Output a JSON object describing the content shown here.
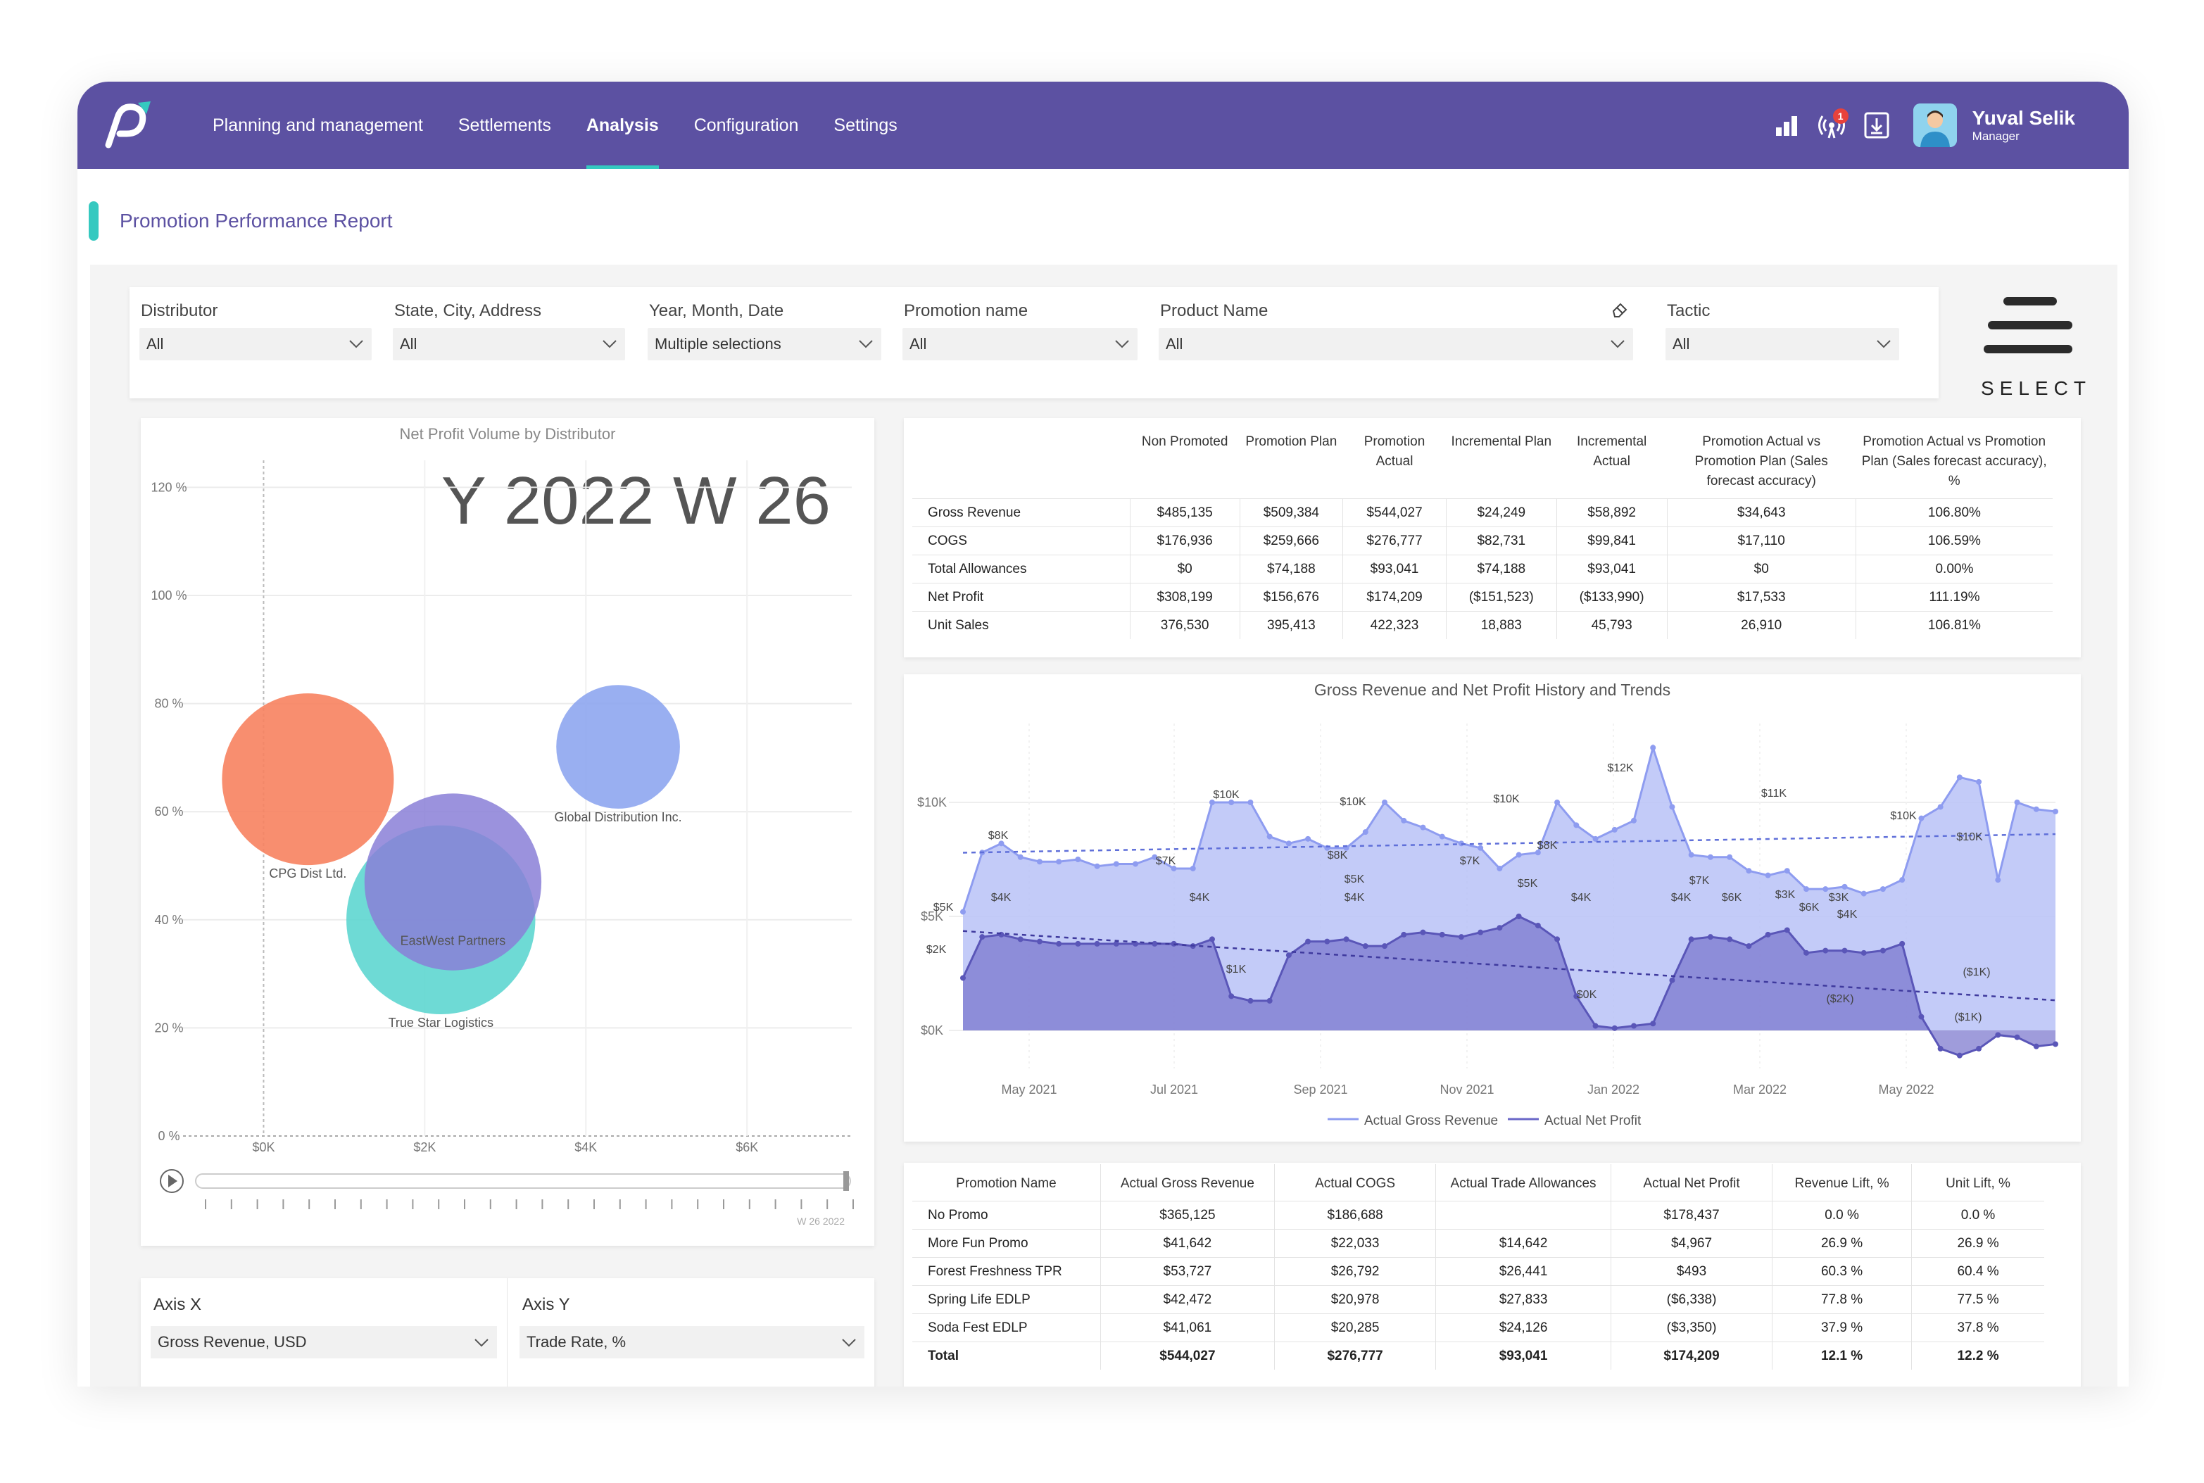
{
  "nav": {
    "items": [
      "Planning and management",
      "Settlements",
      "Analysis",
      "Configuration",
      "Settings"
    ],
    "active": "Analysis",
    "notification_count": "1"
  },
  "user": {
    "name": "Yuval Selik",
    "role": "Manager"
  },
  "report_title": "Promotion Performance Report",
  "filters": [
    {
      "label": "Distributor",
      "value": "All"
    },
    {
      "label": "State, City, Address",
      "value": "All"
    },
    {
      "label": "Year, Month, Date",
      "value": "Multiple selections"
    },
    {
      "label": "Promotion name",
      "value": "All"
    },
    {
      "label": "Product Name",
      "value": "All"
    },
    {
      "label": "Tactic",
      "value": "All"
    }
  ],
  "select_label": "SELECT",
  "bubble": {
    "title": "Net Profit Volume by Distributor",
    "period": "Y 2022 W 26",
    "y_ticks": [
      "0 %",
      "20 %",
      "40 %",
      "60 %",
      "80 %",
      "100 %",
      "120 %"
    ],
    "x_ticks": [
      "$0K",
      "$2K",
      "$4K",
      "$6K"
    ],
    "timeline_label": "W 26 2022",
    "points": [
      {
        "name": "CPG Dist Ltd.",
        "x": 0.55,
        "y": 66,
        "color": "#f7825f"
      },
      {
        "name": "Global Distribution Inc.",
        "x": 4.4,
        "y": 72,
        "color": "#8ea6ef"
      },
      {
        "name": "EastWest Partners",
        "x": 2.35,
        "y": 47,
        "color": "#8a7fd7"
      },
      {
        "name": "True Star Logistics",
        "x": 2.2,
        "y": 40,
        "color": "#5ed6d0"
      }
    ]
  },
  "axis_selectors": [
    {
      "label": "Axis X",
      "value": "Gross Revenue, USD"
    },
    {
      "label": "Axis Y",
      "value": "Trade Rate, %"
    }
  ],
  "table1": {
    "headers": [
      "",
      "Non Promoted",
      "Promotion Plan",
      "Promotion Actual",
      "Incremental Plan",
      "Incremental Actual",
      "Promotion Actual vs Promotion Plan (Sales forecast accuracy)",
      "Promotion Actual vs Promotion Plan (Sales forecast accuracy), %"
    ],
    "rows": [
      [
        "Gross Revenue",
        "$485,135",
        "$509,384",
        "$544,027",
        "$24,249",
        "$58,892",
        "$34,643",
        "106.80%"
      ],
      [
        "COGS",
        "$176,936",
        "$259,666",
        "$276,777",
        "$82,731",
        "$99,841",
        "$17,110",
        "106.59%"
      ],
      [
        "Total Allowances",
        "$0",
        "$74,188",
        "$93,041",
        "$74,188",
        "$93,041",
        "$0",
        "0.00%"
      ],
      [
        "Net Profit",
        "$308,199",
        "$156,676",
        "$174,209",
        "($151,523)",
        "($133,990)",
        "$17,533",
        "111.19%"
      ],
      [
        "Unit Sales",
        "376,530",
        "395,413",
        "422,323",
        "18,883",
        "45,793",
        "26,910",
        "106.81%"
      ]
    ]
  },
  "table2": {
    "headers": [
      "Promotion Name",
      "Actual Gross Revenue",
      "Actual COGS",
      "Actual Trade Allowances",
      "Actual Net Profit",
      "Revenue Lift, %",
      "Unit Lift, %"
    ],
    "rows": [
      [
        "No Promo",
        "$365,125",
        "$186,688",
        "",
        "$178,437",
        "0.0 %",
        "0.0 %"
      ],
      [
        "More Fun Promo",
        "$41,642",
        "$22,033",
        "$14,642",
        "$4,967",
        "26.9 %",
        "26.9 %"
      ],
      [
        "Forest Freshness TPR",
        "$53,727",
        "$26,792",
        "$26,441",
        "$493",
        "60.3 %",
        "60.4 %"
      ],
      [
        "Spring Life EDLP",
        "$42,472",
        "$20,978",
        "$27,833",
        "($6,338)",
        "77.8 %",
        "77.5 %"
      ],
      [
        "Soda Fest EDLP",
        "$41,061",
        "$20,285",
        "$24,126",
        "($3,350)",
        "37.9 %",
        "37.8 %"
      ]
    ],
    "total": [
      "Total",
      "$544,027",
      "$276,777",
      "$93,041",
      "$174,209",
      "12.1 %",
      "12.2 %"
    ]
  },
  "chart_data": [
    {
      "type": "scatter",
      "title": "Net Profit Volume by Distributor",
      "xlabel": "",
      "ylabel": "",
      "x_ticks": [
        "$0K",
        "$2K",
        "$4K",
        "$6K"
      ],
      "y_ticks": [
        "0 %",
        "20 %",
        "40 %",
        "60 %",
        "80 %",
        "100 %",
        "120 %"
      ],
      "xlim": [
        -1,
        7.3
      ],
      "ylim": [
        0,
        125
      ],
      "series": [
        {
          "name": "CPG Dist Ltd.",
          "x": [
            0.55
          ],
          "y": [
            66
          ],
          "size": 1.0
        },
        {
          "name": "Global Distribution Inc.",
          "x": [
            4.4
          ],
          "y": [
            72
          ],
          "size": 0.72
        },
        {
          "name": "EastWest Partners",
          "x": [
            2.35
          ],
          "y": [
            47
          ],
          "size": 1.03
        },
        {
          "name": "True Star Logistics",
          "x": [
            2.2
          ],
          "y": [
            40
          ],
          "size": 1.1
        }
      ]
    },
    {
      "type": "area",
      "title": "Gross Revenue and Net Profit History and Trends",
      "x_ticks": [
        "May 2021",
        "Jul 2021",
        "Sep 2021",
        "Nov 2021",
        "Jan 2022",
        "Mar 2022",
        "May 2022"
      ],
      "y_ticks": [
        "$0K",
        "$5K",
        "$10K"
      ],
      "ylim": [
        -1.5,
        13
      ],
      "legend": [
        "Actual Gross Revenue",
        "Actual Net Profit"
      ],
      "series": [
        {
          "name": "Actual Gross Revenue",
          "color": "#8e9cf0",
          "values": [
            5.2,
            7.8,
            8.2,
            7.6,
            7.4,
            7.4,
            7.5,
            7.2,
            7.3,
            7.3,
            7.6,
            7.1,
            7.1,
            10.0,
            10.0,
            10.0,
            8.5,
            8.2,
            8.4,
            8.0,
            8.0,
            8.7,
            10.0,
            9.2,
            8.9,
            8.5,
            8.2,
            8.0,
            7.1,
            7.7,
            7.8,
            10.0,
            9.0,
            8.4,
            8.8,
            9.2,
            12.4,
            9.8,
            7.7,
            7.6,
            7.6,
            7.0,
            6.8,
            7.0,
            6.2,
            6.2,
            6.3,
            6.0,
            6.2,
            6.6,
            9.3,
            9.8,
            11.1,
            10.9,
            6.6,
            10.0,
            9.7,
            9.6
          ]
        },
        {
          "name": "Actual Net Profit",
          "color": "#6a67c8",
          "values": [
            2.3,
            4.1,
            4.2,
            4.0,
            3.9,
            3.8,
            3.8,
            3.8,
            3.8,
            3.8,
            3.8,
            3.8,
            3.7,
            4.0,
            1.5,
            1.3,
            1.3,
            3.3,
            3.9,
            3.9,
            4.0,
            3.7,
            3.7,
            4.2,
            4.3,
            4.2,
            4.1,
            4.3,
            4.5,
            5.0,
            4.6,
            4.0,
            1.5,
            0.2,
            0.1,
            0.2,
            0.3,
            2.2,
            4.0,
            4.1,
            4.0,
            3.7,
            4.2,
            4.4,
            3.4,
            3.5,
            3.5,
            3.4,
            3.5,
            3.8,
            0.6,
            -0.8,
            -1.1,
            -0.8,
            -0.2,
            -0.3,
            -0.7,
            -0.6
          ]
        }
      ],
      "data_labels": [
        "$10K",
        "$8K",
        "$7K",
        "$10K",
        "$8K",
        "$10K",
        "$7K",
        "$8K",
        "$12K",
        "$7K",
        "$11K",
        "$10K",
        "$10K",
        "$5K",
        "$4K",
        "$4K",
        "$4K",
        "$5K",
        "$5K",
        "$4K",
        "$4K",
        "$6K",
        "$3K",
        "$6K",
        "$3K",
        "$4K",
        "$2K",
        "$1K",
        "$0K",
        "($2K)",
        "($1K)",
        "($1K)"
      ]
    }
  ]
}
